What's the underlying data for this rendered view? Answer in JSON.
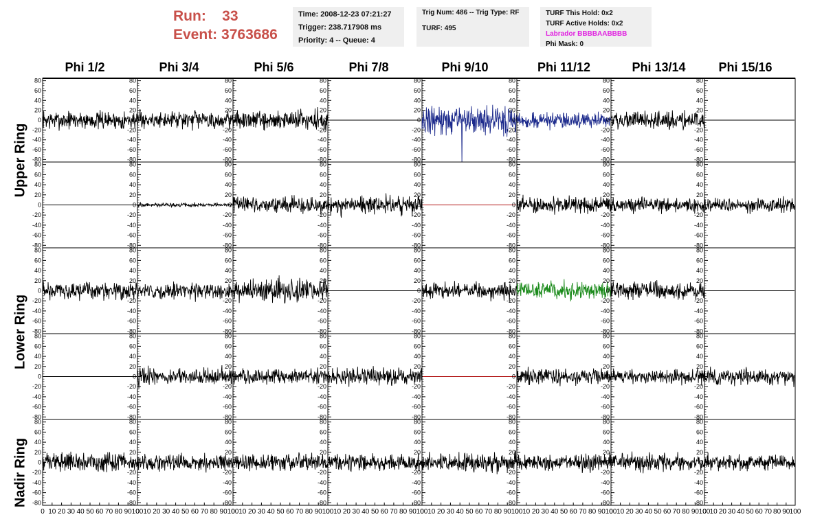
{
  "header": {
    "run_label": "Run:",
    "run_value": "33",
    "event_label": "Event:",
    "event_value": "3763686",
    "time": "Time: 2008-12-23 07:21:27",
    "trigger": "Trigger: 238.717908 ms",
    "priority": "Priority: 4 -- Queue: 4",
    "trig_num": "Trig Num: 486 -- Trig Type: RF",
    "turf": "TURF: 495",
    "turf_this_hold": "TURF This Hold: 0x2",
    "turf_active_holds": "TURF Active Holds: 0x2",
    "labrador": "Labrador BBBBAABBBB",
    "phi_mask": "Phi Mask: 0",
    "labrador_color": "#e020e0",
    "run_color": "#c8504a"
  },
  "columns": [
    "Phi 1/2",
    "Phi 3/4",
    "Phi 5/6",
    "Phi 7/8",
    "Phi 9/10",
    "Phi 11/12",
    "Phi 13/14",
    "Phi 15/16"
  ],
  "ring_labels": [
    "Upper Ring",
    "Lower Ring",
    "Nadir Ring"
  ],
  "chart_data": {
    "type": "line",
    "rows": 5,
    "columns": 8,
    "y_ticks": [
      80,
      60,
      40,
      20,
      0,
      -20,
      -40,
      -60,
      -80
    ],
    "y_range": [
      -85,
      85
    ],
    "x_ticks": [
      0,
      10,
      20,
      30,
      40,
      50,
      60,
      70,
      80,
      90,
      100
    ],
    "x_range": [
      0,
      100
    ],
    "trace_colors": {
      "normal": "#000000",
      "highlight_blue": "#1c2a8c",
      "highlight_green": "#1a8a1a",
      "dead_red": "#b01010"
    },
    "panels": [
      [
        "normal:14",
        "normal:13",
        "normal:15",
        "flat",
        "blue:22",
        "blue:12",
        "normal:13",
        "flat"
      ],
      [
        "flat",
        "normal:3",
        "normal:12",
        "normal:14",
        "flat-red",
        "normal:12",
        "normal:11",
        "normal:11"
      ],
      [
        "normal:13",
        "normal:12",
        "normal:17",
        "flat",
        "normal:12",
        "green:14",
        "normal:13",
        "flat"
      ],
      [
        "flat",
        "normal:13",
        "normal:12",
        "normal:13",
        "flat-red",
        "normal:12",
        "normal:11",
        "normal:12"
      ],
      [
        "normal:14",
        "normal:12",
        "normal:13",
        "normal:12",
        "normal:14",
        "normal:12",
        "normal:13",
        "normal:12"
      ]
    ],
    "spikes": [
      {
        "row": 0,
        "col": 4,
        "x": 42,
        "y": -90
      }
    ]
  }
}
